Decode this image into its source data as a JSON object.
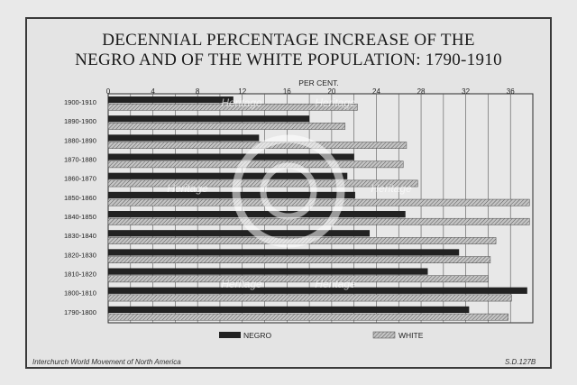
{
  "chart_data": {
    "type": "bar",
    "orientation": "horizontal",
    "title_lines": [
      "DECENNIAL PERCENTAGE INCREASE OF THE",
      "NEGRO AND OF THE WHITE POPULATION: 1790-1910"
    ],
    "xlabel": "PER CENT.",
    "xlim": [
      0,
      38
    ],
    "xticks": [
      0,
      4,
      8,
      12,
      16,
      20,
      24,
      28,
      32,
      36
    ],
    "grid": true,
    "legend_position": "bottom",
    "categories": [
      "1900-1910",
      "1890-1900",
      "1880-1890",
      "1870-1880",
      "1860-1870",
      "1850-1860",
      "1840-1850",
      "1830-1840",
      "1820-1830",
      "1810-1820",
      "1800-1810",
      "1790-1800"
    ],
    "series": [
      {
        "name": "NEGRO",
        "color": "#222222",
        "pattern": "solid",
        "values": [
          11.2,
          18.0,
          13.5,
          22.0,
          21.4,
          22.1,
          26.6,
          23.4,
          31.4,
          28.6,
          37.5,
          32.3
        ]
      },
      {
        "name": "WHITE",
        "color": "#9a9a9a",
        "pattern": "hatched",
        "values": [
          22.3,
          21.2,
          26.7,
          26.4,
          27.7,
          37.7,
          37.7,
          34.7,
          34.2,
          34.0,
          36.1,
          35.8
        ]
      }
    ]
  },
  "footer": {
    "left": "Interchurch World Movement of North America",
    "right": "S.D.127B"
  },
  "watermark": "Heritage"
}
